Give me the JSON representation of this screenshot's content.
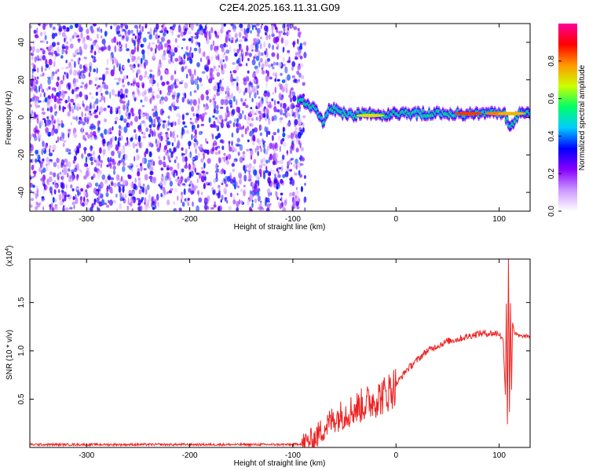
{
  "title": "C2E4.2025.163.11.31.G09",
  "chart_data": [
    {
      "type": "heatmap",
      "xlabel": "Height of straight line (km)",
      "ylabel": "Frequency (Hz)",
      "xlim": [
        -355,
        130
      ],
      "ylim": [
        -50,
        50
      ],
      "xticks": [
        -300,
        -200,
        -100,
        0,
        100
      ],
      "yticks": [
        -40,
        -20,
        0,
        20,
        40
      ],
      "colorbar": {
        "label": "Normalized spectral amplitude",
        "range": [
          0,
          1
        ],
        "ticks": [
          0.0,
          0.2,
          0.4,
          0.6,
          0.8
        ],
        "tick_labels": [
          "0.0",
          "0.2",
          "0.4",
          "0.6",
          "0.8"
        ],
        "colormap": [
          "#ffffff",
          "#cc99ff",
          "#8800ff",
          "#0000ff",
          "#00ccff",
          "#00ff66",
          "#ccff00",
          "#ff9900",
          "#ff0000",
          "#ff0099"
        ]
      },
      "noise_region": {
        "x_range": [
          -355,
          -88
        ],
        "y_range": [
          -50,
          50
        ],
        "level": 0.15
      },
      "signal_track": [
        {
          "x": -95,
          "f": 9
        },
        {
          "x": -85,
          "f": 7
        },
        {
          "x": -75,
          "f": 2
        },
        {
          "x": -70,
          "f": -3
        },
        {
          "x": -65,
          "f": 5
        },
        {
          "x": -55,
          "f": 3
        },
        {
          "x": -45,
          "f": 1
        },
        {
          "x": -30,
          "f": 2
        },
        {
          "x": -15,
          "f": 1
        },
        {
          "x": 0,
          "f": 2
        },
        {
          "x": 20,
          "f": 2
        },
        {
          "x": 50,
          "f": 2
        },
        {
          "x": 80,
          "f": 2
        },
        {
          "x": 105,
          "f": 2
        },
        {
          "x": 110,
          "f": -5
        },
        {
          "x": 120,
          "f": 2
        },
        {
          "x": 130,
          "f": 3
        }
      ],
      "peaks": [
        {
          "x": 70,
          "f": 2,
          "amp": 0.85
        },
        {
          "x": 100,
          "f": 2,
          "amp": 0.8
        },
        {
          "x": 112,
          "f": 2,
          "amp": 0.75
        },
        {
          "x": -25,
          "f": 1,
          "amp": 0.7
        }
      ]
    },
    {
      "type": "line",
      "xlabel": "Height of straight line (km)",
      "ylabel": "SNR (10 * v/v)",
      "multiplier": "(x10",
      "multiplier_exp": "4",
      "multiplier_close": ")",
      "xlim": [
        -355,
        130
      ],
      "ylim": [
        0,
        1.95
      ],
      "xticks": [
        -300,
        -200,
        -100,
        0,
        100
      ],
      "yticks": [
        0.5,
        1.0,
        1.5
      ],
      "ytick_labels": [
        "0.5",
        "1.0",
        "1.5"
      ],
      "line_color": "#ee2222",
      "series": [
        {
          "x": [
            -355,
            -300,
            -200,
            -100,
            -90,
            -80,
            -70,
            -60,
            -50,
            -40,
            -30,
            -20,
            -10,
            0,
            10,
            20,
            30,
            40,
            50,
            60,
            70,
            80,
            90,
            100,
            104,
            106,
            107,
            108,
            109,
            110,
            111,
            112,
            113,
            115,
            120,
            130
          ],
          "values": [
            0.03,
            0.03,
            0.03,
            0.03,
            0.04,
            0.08,
            0.2,
            0.3,
            0.35,
            0.4,
            0.45,
            0.5,
            0.55,
            0.65,
            0.8,
            0.9,
            1.0,
            1.05,
            1.1,
            1.12,
            1.15,
            1.18,
            1.18,
            1.18,
            1.1,
            0.55,
            1.5,
            0.25,
            1.95,
            0.35,
            1.5,
            0.6,
            1.3,
            1.18,
            1.15,
            1.15
          ]
        }
      ]
    }
  ]
}
